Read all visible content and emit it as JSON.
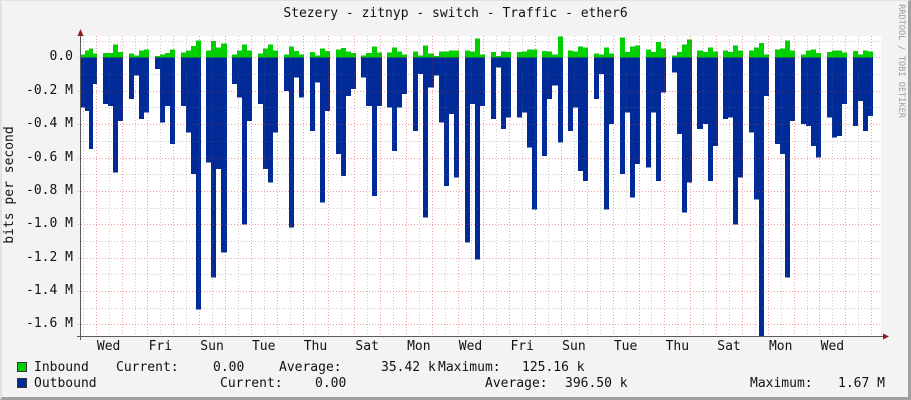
{
  "watermark": "RRDTOOL / TOBI OETIKER",
  "colors": {
    "inbound": "#00CF00",
    "outbound": "#002A97",
    "plot_background": "#FFFFFF",
    "canvas_background": "#F3F3F3",
    "major_grid": "rgba(220,40,40,0.45)",
    "minor_grid": "rgba(110,110,110,0.35)",
    "axis": "#5a5a5a",
    "arrow": "#8b1c1c"
  },
  "chart_data": {
    "type": "area",
    "title": "Stezery - zitnyp - switch - Traffic - ether6",
    "xlabel": "",
    "ylabel": "bits per second",
    "ylim": [
      -1.669,
      0.128
    ],
    "y_unit": "M (bits per second, outbound plotted negative)",
    "xlim_days": [
      -0.57,
      30.38
    ],
    "grid": {
      "on": true,
      "x_major_days": 1,
      "x_minor_days": 0.5,
      "y_major": 0.2,
      "y_minor": 0.1
    },
    "legend_position": "bottom",
    "yticks": [
      {
        "value": 0,
        "label": "0.0"
      },
      {
        "value": -0.2,
        "label": "-0.2 M"
      },
      {
        "value": -0.4,
        "label": "-0.4 M"
      },
      {
        "value": -0.6,
        "label": "-0.6 M"
      },
      {
        "value": -0.8,
        "label": "-0.8 M"
      },
      {
        "value": -1.0,
        "label": "-1.0 M"
      },
      {
        "value": -1.2,
        "label": "-1.2 M"
      },
      {
        "value": -1.4,
        "label": "-1.4 M"
      },
      {
        "value": -1.6,
        "label": "-1.6 M"
      }
    ],
    "xticks": [
      {
        "day": 0.5,
        "label": "Wed"
      },
      {
        "day": 2.5,
        "label": "Fri"
      },
      {
        "day": 4.5,
        "label": "Sun"
      },
      {
        "day": 6.5,
        "label": "Tue"
      },
      {
        "day": 8.5,
        "label": "Thu"
      },
      {
        "day": 10.5,
        "label": "Sat"
      },
      {
        "day": 12.5,
        "label": "Mon"
      },
      {
        "day": 14.5,
        "label": "Wed"
      },
      {
        "day": 16.5,
        "label": "Fri"
      },
      {
        "day": 18.5,
        "label": "Sun"
      },
      {
        "day": 20.5,
        "label": "Tue"
      },
      {
        "day": 22.5,
        "label": "Thu"
      },
      {
        "day": 24.5,
        "label": "Sat"
      },
      {
        "day": 26.5,
        "label": "Mon"
      },
      {
        "day": 28.5,
        "label": "Wed"
      }
    ],
    "segments": [
      {
        "t0": -0.57,
        "t1": 0.05
      },
      {
        "t0": 0.28,
        "t1": 1.06
      },
      {
        "t0": 1.28,
        "t1": 2.06
      },
      {
        "t0": 2.28,
        "t1": 3.06
      },
      {
        "t0": 3.28,
        "t1": 4.06
      },
      {
        "t0": 4.28,
        "t1": 5.06
      },
      {
        "t0": 5.28,
        "t1": 6.06
      },
      {
        "t0": 6.28,
        "t1": 7.06
      },
      {
        "t0": 7.28,
        "t1": 8.06
      },
      {
        "t0": 8.28,
        "t1": 9.06
      },
      {
        "t0": 9.28,
        "t1": 10.06
      },
      {
        "t0": 10.28,
        "t1": 11.06
      },
      {
        "t0": 11.28,
        "t1": 12.06
      },
      {
        "t0": 12.28,
        "t1": 14.06
      },
      {
        "t0": 14.28,
        "t1": 15.06
      },
      {
        "t0": 15.28,
        "t1": 16.06
      },
      {
        "t0": 16.28,
        "t1": 17.06
      },
      {
        "t0": 17.28,
        "t1": 18.06
      },
      {
        "t0": 18.28,
        "t1": 19.06
      },
      {
        "t0": 19.28,
        "t1": 20.06
      },
      {
        "t0": 20.28,
        "t1": 21.06
      },
      {
        "t0": 21.28,
        "t1": 22.06
      },
      {
        "t0": 22.28,
        "t1": 23.06
      },
      {
        "t0": 23.28,
        "t1": 24.06
      },
      {
        "t0": 24.28,
        "t1": 25.06
      },
      {
        "t0": 25.28,
        "t1": 26.06
      },
      {
        "t0": 26.28,
        "t1": 27.06
      },
      {
        "t0": 27.28,
        "t1": 28.06
      },
      {
        "t0": 28.28,
        "t1": 29.06
      },
      {
        "t0": 29.28,
        "t1": 30.06
      }
    ],
    "series": [
      {
        "name": "Inbound",
        "color": "#00CF00",
        "unit": "k",
        "direction": "positive",
        "values": [
          [
            18,
            42,
            54,
            24
          ],
          [
            26,
            26,
            78,
            32
          ],
          [
            22,
            12,
            42,
            48
          ],
          [
            8,
            18,
            26,
            48
          ],
          [
            28,
            42,
            68,
            102
          ],
          [
            42,
            98,
            58,
            82
          ],
          [
            18,
            42,
            78,
            42
          ],
          [
            22,
            52,
            78,
            42
          ],
          [
            18,
            66,
            38,
            18
          ],
          [
            32,
            12,
            52,
            38
          ],
          [
            48,
            56,
            36,
            26
          ],
          [
            12,
            26,
            66,
            28
          ],
          [
            28,
            58,
            36,
            18
          ],
          [
            36,
            12,
            72,
            22,
            8,
            36,
            36,
            42,
            42
          ],
          [
            42,
            36,
            112,
            18
          ],
          [
            32,
            8,
            36,
            32
          ],
          [
            32,
            36,
            48,
            48
          ],
          [
            38,
            36,
            18,
            125
          ],
          [
            42,
            36,
            66,
            58
          ],
          [
            22,
            18,
            58,
            22
          ],
          [
            118,
            32,
            66,
            72
          ],
          [
            48,
            32,
            92,
            52
          ],
          [
            12,
            32,
            78,
            108
          ],
          [
            42,
            32,
            58,
            36
          ],
          [
            42,
            32,
            72,
            42
          ],
          [
            42,
            58,
            86,
            18
          ],
          [
            48,
            52,
            102,
            42
          ],
          [
            18,
            42,
            48,
            26
          ],
          [
            32,
            42,
            42,
            28
          ],
          [
            38,
            18,
            42,
            36
          ]
        ]
      },
      {
        "name": "Outbound",
        "color": "#002A97",
        "unit": "M",
        "direction": "negative",
        "values": [
          [
            -0.3,
            -0.32,
            -0.55,
            -0.16
          ],
          [
            -0.28,
            -0.29,
            -0.69,
            -0.38
          ],
          [
            -0.25,
            -0.11,
            -0.37,
            -0.33
          ],
          [
            -0.07,
            -0.39,
            -0.29,
            -0.52
          ],
          [
            -0.29,
            -0.45,
            -0.7,
            -1.51
          ],
          [
            -0.63,
            -1.32,
            -0.67,
            -1.17
          ],
          [
            -0.16,
            -0.24,
            -1.0,
            -0.38
          ],
          [
            -0.28,
            -0.67,
            -0.75,
            -0.45
          ],
          [
            -0.2,
            -1.02,
            -0.12,
            -0.24
          ],
          [
            -0.44,
            -0.15,
            -0.87,
            -0.32
          ],
          [
            -0.58,
            -0.71,
            -0.23,
            -0.19
          ],
          [
            -0.12,
            -0.29,
            -0.83,
            -0.29
          ],
          [
            -0.3,
            -0.56,
            -0.3,
            -0.22
          ],
          [
            -0.44,
            -0.1,
            -0.96,
            -0.18,
            -0.11,
            -0.39,
            -0.77,
            -0.34,
            -0.72
          ],
          [
            -1.11,
            -0.28,
            -1.21,
            -0.29
          ],
          [
            -0.37,
            -0.06,
            -0.43,
            -0.36
          ],
          [
            -0.36,
            -0.33,
            -0.54,
            -0.91
          ],
          [
            -0.59,
            -0.25,
            -0.17,
            -0.51
          ],
          [
            -0.44,
            -0.3,
            -0.68,
            -0.74
          ],
          [
            -0.25,
            -0.1,
            -0.91,
            -0.4
          ],
          [
            -0.7,
            -0.33,
            -0.84,
            -0.64
          ],
          [
            -0.66,
            -0.33,
            -0.74,
            -0.21
          ],
          [
            -0.09,
            -0.46,
            -0.93,
            -0.75
          ],
          [
            -0.43,
            -0.4,
            -0.74,
            -0.53
          ],
          [
            -0.37,
            -0.36,
            -1.0,
            -0.72
          ],
          [
            -0.45,
            -0.85,
            -1.67,
            -0.23
          ],
          [
            -0.52,
            -0.58,
            -1.32,
            -0.38
          ],
          [
            -0.4,
            -0.41,
            -0.53,
            -0.6
          ],
          [
            -0.36,
            -0.48,
            -0.47,
            -0.28
          ],
          [
            -0.41,
            -0.26,
            -0.44,
            -0.35
          ]
        ]
      }
    ]
  },
  "legend": {
    "rows": [
      {
        "name": "Inbound",
        "color": "#00CF00",
        "current_label": "Current:",
        "current": "0.00",
        "average_label": "Average:",
        "average": "35.42 k",
        "maximum_label": "Maximum:",
        "maximum": "125.16 k"
      },
      {
        "name": "Outbound",
        "color": "#002A97",
        "current_label": "Current:",
        "current": "0.00",
        "average_label": "Average:",
        "average": "396.50 k",
        "maximum_label": "Maximum:",
        "maximum": "1.67 M"
      }
    ]
  }
}
